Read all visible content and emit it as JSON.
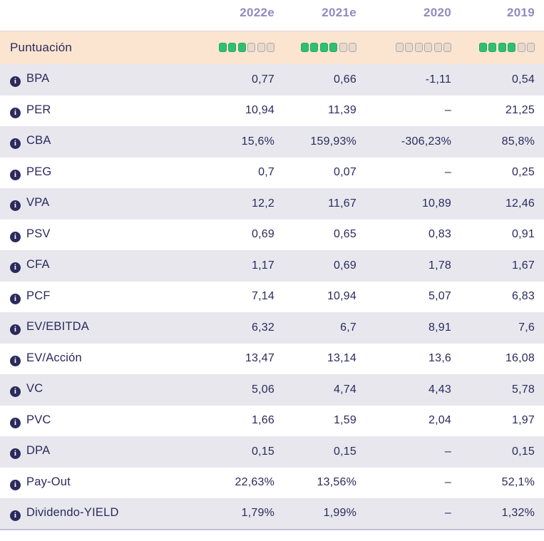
{
  "header": {
    "columns": [
      "2022e",
      "2021e",
      "2020",
      "2019"
    ]
  },
  "score_row": {
    "label": "Puntuación",
    "dots_total": 6,
    "scores": [
      3,
      4,
      0,
      4
    ]
  },
  "table": {
    "rows": [
      {
        "label": "BPA",
        "values": [
          "0,77",
          "0,66",
          "-1,11",
          "0,54"
        ]
      },
      {
        "label": "PER",
        "values": [
          "10,94",
          "11,39",
          "–",
          "21,25"
        ]
      },
      {
        "label": "CBA",
        "values": [
          "15,6%",
          "159,93%",
          "-306,23%",
          "85,8%"
        ]
      },
      {
        "label": "PEG",
        "values": [
          "0,7",
          "0,07",
          "–",
          "0,25"
        ]
      },
      {
        "label": "VPA",
        "values": [
          "12,2",
          "11,67",
          "10,89",
          "12,46"
        ]
      },
      {
        "label": "PSV",
        "values": [
          "0,69",
          "0,65",
          "0,83",
          "0,91"
        ]
      },
      {
        "label": "CFA",
        "values": [
          "1,17",
          "0,69",
          "1,78",
          "1,67"
        ]
      },
      {
        "label": "PCF",
        "values": [
          "7,14",
          "10,94",
          "5,07",
          "6,83"
        ]
      },
      {
        "label": "EV/EBITDA",
        "values": [
          "6,32",
          "6,7",
          "8,91",
          "7,6"
        ]
      },
      {
        "label": "EV/Acción",
        "values": [
          "13,47",
          "13,14",
          "13,6",
          "16,08"
        ]
      },
      {
        "label": "VC",
        "values": [
          "5,06",
          "4,74",
          "4,43",
          "5,78"
        ]
      },
      {
        "label": "PVC",
        "values": [
          "1,66",
          "1,59",
          "2,04",
          "1,97"
        ]
      },
      {
        "label": "DPA",
        "values": [
          "0,15",
          "0,15",
          "–",
          "0,15"
        ]
      },
      {
        "label": "Pay-Out",
        "values": [
          "22,63%",
          "13,56%",
          "–",
          "52,1%"
        ]
      },
      {
        "label": "Dividendo-YIELD",
        "values": [
          "1,79%",
          "1,99%",
          "–",
          "1,32%"
        ]
      }
    ]
  },
  "icons": {
    "info_glyph": "i"
  },
  "colors": {
    "text_navy": "#2b2a5c",
    "header_purple": "#8f8cc0",
    "score_row_bg": "#fbe5d0",
    "alt_row_bg": "#e8e7ee",
    "dot_filled": "#2fbf71",
    "dot_filled_border": "#28a763",
    "dot_empty_fill": "#e8dac8",
    "dot_empty_border": "#b1a5b5",
    "bottom_border": "#c8bfdc"
  }
}
